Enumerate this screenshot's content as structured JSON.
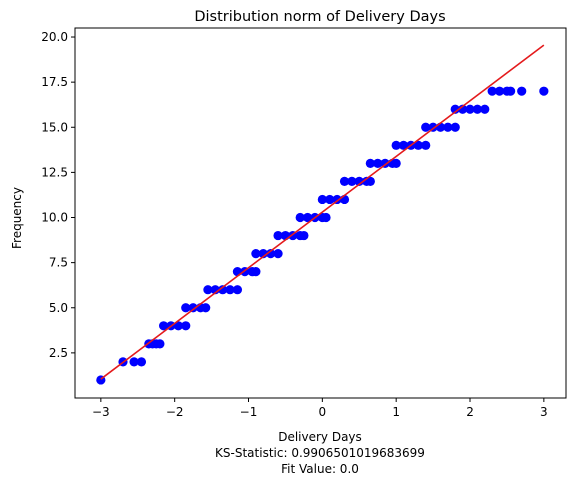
{
  "chart_data": {
    "type": "scatter",
    "title": "Distribution norm of Delivery Days",
    "xlabel": "Delivery Days",
    "ylabel": "Frequency",
    "caption_lines": [
      "KS-Statistic: 0.9906501019683699",
      "Fit Value: 0.0"
    ],
    "xlim": [
      -3.35,
      3.3
    ],
    "ylim": [
      0.0,
      20.5
    ],
    "x_ticks": [
      -3,
      -2,
      -1,
      0,
      1,
      2,
      3
    ],
    "x_tick_labels": [
      "−3",
      "−2",
      "−1",
      "0",
      "1",
      "2",
      "3"
    ],
    "y_ticks": [
      2.5,
      5.0,
      7.5,
      10.0,
      12.5,
      15.0,
      17.5,
      20.0
    ],
    "y_tick_labels": [
      "2.5",
      "5.0",
      "7.5",
      "10.0",
      "12.5",
      "15.0",
      "17.5",
      "20.0"
    ],
    "grid": false,
    "series": [
      {
        "kind": "points",
        "color": "#0000ff",
        "points": [
          [
            -3.0,
            1
          ],
          [
            -2.7,
            2
          ],
          [
            -2.55,
            2
          ],
          [
            -2.45,
            2
          ],
          [
            -2.35,
            3
          ],
          [
            -2.3,
            3
          ],
          [
            -2.25,
            3
          ],
          [
            -2.2,
            3
          ],
          [
            -2.15,
            4
          ],
          [
            -2.05,
            4
          ],
          [
            -1.95,
            4
          ],
          [
            -1.85,
            4
          ],
          [
            -1.85,
            5
          ],
          [
            -1.75,
            5
          ],
          [
            -1.65,
            5
          ],
          [
            -1.58,
            5
          ],
          [
            -1.55,
            6
          ],
          [
            -1.45,
            6
          ],
          [
            -1.35,
            6
          ],
          [
            -1.25,
            6
          ],
          [
            -1.15,
            6
          ],
          [
            -1.15,
            7
          ],
          [
            -1.05,
            7
          ],
          [
            -0.95,
            7
          ],
          [
            -0.9,
            7
          ],
          [
            -0.9,
            8
          ],
          [
            -0.8,
            8
          ],
          [
            -0.7,
            8
          ],
          [
            -0.6,
            8
          ],
          [
            -0.6,
            9
          ],
          [
            -0.5,
            9
          ],
          [
            -0.4,
            9
          ],
          [
            -0.3,
            9
          ],
          [
            -0.25,
            9
          ],
          [
            -0.3,
            10
          ],
          [
            -0.2,
            10
          ],
          [
            -0.1,
            10
          ],
          [
            0.0,
            10
          ],
          [
            0.05,
            10
          ],
          [
            0.0,
            11
          ],
          [
            0.1,
            11
          ],
          [
            0.2,
            11
          ],
          [
            0.3,
            11
          ],
          [
            0.3,
            12
          ],
          [
            0.4,
            12
          ],
          [
            0.5,
            12
          ],
          [
            0.6,
            12
          ],
          [
            0.65,
            12
          ],
          [
            0.65,
            13
          ],
          [
            0.75,
            13
          ],
          [
            0.85,
            13
          ],
          [
            0.95,
            13
          ],
          [
            1.0,
            13
          ],
          [
            1.0,
            14
          ],
          [
            1.1,
            14
          ],
          [
            1.2,
            14
          ],
          [
            1.3,
            14
          ],
          [
            1.4,
            14
          ],
          [
            1.4,
            15
          ],
          [
            1.5,
            15
          ],
          [
            1.6,
            15
          ],
          [
            1.7,
            15
          ],
          [
            1.8,
            15
          ],
          [
            1.8,
            16
          ],
          [
            1.9,
            16
          ],
          [
            2.0,
            16
          ],
          [
            2.1,
            16
          ],
          [
            2.2,
            16
          ],
          [
            2.3,
            17
          ],
          [
            2.4,
            17
          ],
          [
            2.5,
            17
          ],
          [
            2.55,
            17
          ],
          [
            2.7,
            17
          ],
          [
            3.0,
            17
          ]
        ]
      },
      {
        "kind": "line",
        "color": "#e41a1c",
        "points": [
          [
            -3.0,
            1.05
          ],
          [
            3.0,
            19.55
          ]
        ]
      }
    ]
  }
}
